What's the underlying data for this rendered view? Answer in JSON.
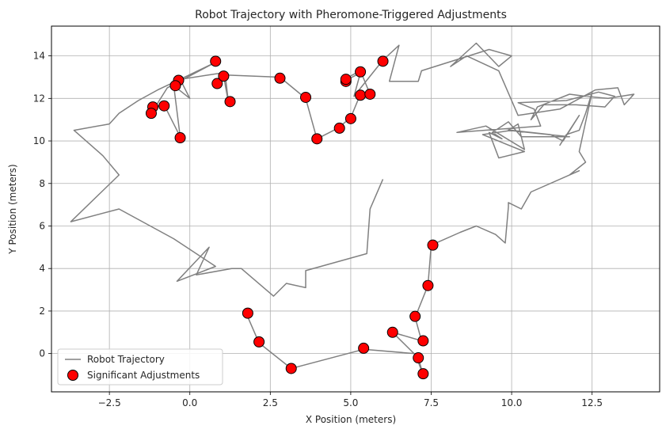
{
  "chart_data": {
    "type": "scatter",
    "title": "Robot Trajectory with Pheromone-Triggered Adjustments",
    "xlabel": "X Position (meters)",
    "ylabel": "Y Position (meters)",
    "xlim": [
      -4.3,
      14.6
    ],
    "ylim": [
      -1.8,
      15.4
    ],
    "xticks": [
      -2.5,
      0.0,
      2.5,
      5.0,
      7.5,
      10.0,
      12.5
    ],
    "xtick_labels": [
      "−2.5",
      "0.0",
      "2.5",
      "5.0",
      "7.5",
      "10.0",
      "12.5"
    ],
    "yticks": [
      0,
      2,
      4,
      6,
      8,
      10,
      12,
      14
    ],
    "ytick_labels": [
      "0",
      "2",
      "4",
      "6",
      "8",
      "10",
      "12",
      "14"
    ],
    "grid": true,
    "legend_position": "lower-left",
    "series": [
      {
        "name": "Robot Trajectory",
        "kind": "line",
        "color": "#808080",
        "points": [
          [
            6.0,
            8.2
          ],
          [
            5.6,
            6.8
          ],
          [
            5.5,
            4.7
          ],
          [
            3.6,
            3.9
          ],
          [
            3.6,
            3.1
          ],
          [
            3.0,
            3.3
          ],
          [
            2.6,
            2.7
          ],
          [
            1.6,
            4.0
          ],
          [
            1.3,
            4.0
          ],
          [
            0.2,
            3.7
          ],
          [
            0.6,
            5.0
          ],
          [
            -0.4,
            3.4
          ],
          [
            0.8,
            4.1
          ],
          [
            -0.5,
            5.4
          ],
          [
            -2.2,
            6.8
          ],
          [
            -3.7,
            6.2
          ],
          [
            -2.2,
            8.4
          ],
          [
            -2.7,
            9.3
          ],
          [
            -3.6,
            10.5
          ],
          [
            -2.5,
            10.8
          ],
          [
            -2.2,
            11.3
          ],
          [
            -1.6,
            11.9
          ],
          [
            -1.0,
            12.4
          ],
          [
            -0.3,
            12.9
          ],
          [
            0.8,
            13.7
          ],
          [
            -0.7,
            12.5
          ],
          [
            -1.2,
            11.3
          ],
          [
            -1.1,
            11.6
          ],
          [
            -0.8,
            11.7
          ],
          [
            -0.3,
            10.2
          ],
          [
            -0.5,
            12.6
          ],
          [
            0.0,
            12.0
          ],
          [
            -0.3,
            12.9
          ],
          [
            1.0,
            13.2
          ],
          [
            0.8,
            12.7
          ],
          [
            1.05,
            13.05
          ],
          [
            1.2,
            11.8
          ],
          [
            1.1,
            13.1
          ],
          [
            2.8,
            13.0
          ],
          [
            3.6,
            12.0
          ],
          [
            3.95,
            10.1
          ],
          [
            4.6,
            10.6
          ],
          [
            5.0,
            11.1
          ],
          [
            5.3,
            12.2
          ],
          [
            5.6,
            12.2
          ],
          [
            5.3,
            13.3
          ],
          [
            4.8,
            12.9
          ],
          [
            4.85,
            12.85
          ],
          [
            5.3,
            13.2
          ],
          [
            5.1,
            12.1
          ],
          [
            6.0,
            13.8
          ],
          [
            6.5,
            14.5
          ],
          [
            6.2,
            12.8
          ],
          [
            7.1,
            12.8
          ],
          [
            7.2,
            13.3
          ],
          [
            9.3,
            14.3
          ],
          [
            10.0,
            14.0
          ],
          [
            9.6,
            13.5
          ],
          [
            8.9,
            14.6
          ],
          [
            8.1,
            13.5
          ],
          [
            8.6,
            14.0
          ],
          [
            9.6,
            13.3
          ],
          [
            10.2,
            11.2
          ],
          [
            11.5,
            11.5
          ],
          [
            12.6,
            12.4
          ],
          [
            13.3,
            12.5
          ],
          [
            13.5,
            11.7
          ],
          [
            13.8,
            12.2
          ],
          [
            13.0,
            12.0
          ],
          [
            12.3,
            12.1
          ],
          [
            11.8,
            12.2
          ],
          [
            10.8,
            11.6
          ],
          [
            10.6,
            11.0
          ],
          [
            11.0,
            11.7
          ],
          [
            12.0,
            11.7
          ],
          [
            12.9,
            11.6
          ],
          [
            13.2,
            12.1
          ],
          [
            12.7,
            12.3
          ],
          [
            11.7,
            11.9
          ],
          [
            10.2,
            11.8
          ],
          [
            10.7,
            11.5
          ],
          [
            10.9,
            10.7
          ],
          [
            8.3,
            10.4
          ],
          [
            9.2,
            10.7
          ],
          [
            10.4,
            9.6
          ],
          [
            10.2,
            10.8
          ],
          [
            9.9,
            10.5
          ],
          [
            11.8,
            10.2
          ],
          [
            10.3,
            10.2
          ],
          [
            9.9,
            10.9
          ],
          [
            9.4,
            10.4
          ],
          [
            9.7,
            10.1
          ],
          [
            9.3,
            10.4
          ],
          [
            9.6,
            9.2
          ],
          [
            10.4,
            9.5
          ],
          [
            9.1,
            10.3
          ],
          [
            10.0,
            10.5
          ],
          [
            11.2,
            10.3
          ],
          [
            11.6,
            10.0
          ],
          [
            12.1,
            11.2
          ],
          [
            11.5,
            9.8
          ],
          [
            11.7,
            10.3
          ],
          [
            12.1,
            10.5
          ],
          [
            12.3,
            11.3
          ],
          [
            12.5,
            12.3
          ],
          [
            12.1,
            9.5
          ],
          [
            12.3,
            9.0
          ],
          [
            11.8,
            8.4
          ],
          [
            12.1,
            8.6
          ],
          [
            10.6,
            7.6
          ],
          [
            10.3,
            6.8
          ],
          [
            9.9,
            7.1
          ],
          [
            9.9,
            6.9
          ],
          [
            9.8,
            5.2
          ],
          [
            9.5,
            5.6
          ],
          [
            8.9,
            6.0
          ],
          [
            8.4,
            5.7
          ],
          [
            7.5,
            5.1
          ],
          [
            7.4,
            3.2
          ],
          [
            7.0,
            1.7
          ],
          [
            7.2,
            0.6
          ],
          [
            6.3,
            1.0
          ],
          [
            7.1,
            -0.2
          ],
          [
            7.25,
            -1.0
          ],
          [
            7.0,
            0.0
          ],
          [
            5.4,
            0.2
          ],
          [
            3.15,
            -0.7
          ],
          [
            2.15,
            0.5
          ],
          [
            1.75,
            1.9
          ]
        ]
      },
      {
        "name": "Significant Adjustments",
        "kind": "scatter",
        "color": "#ff0000",
        "edge_color": "#000000",
        "points": [
          [
            0.8,
            13.75
          ],
          [
            -0.35,
            12.85
          ],
          [
            -0.45,
            12.6
          ],
          [
            -0.8,
            11.65
          ],
          [
            -1.15,
            11.6
          ],
          [
            -1.2,
            11.3
          ],
          [
            -0.3,
            10.15
          ],
          [
            0.85,
            12.7
          ],
          [
            1.05,
            13.05
          ],
          [
            1.25,
            11.85
          ],
          [
            2.8,
            12.95
          ],
          [
            3.6,
            12.05
          ],
          [
            3.95,
            10.1
          ],
          [
            4.65,
            10.6
          ],
          [
            5.0,
            11.05
          ],
          [
            4.85,
            12.8
          ],
          [
            4.85,
            12.9
          ],
          [
            5.3,
            12.15
          ],
          [
            5.6,
            12.2
          ],
          [
            5.3,
            13.25
          ],
          [
            6.0,
            13.75
          ],
          [
            7.55,
            5.1
          ],
          [
            7.4,
            3.2
          ],
          [
            7.0,
            1.75
          ],
          [
            7.25,
            0.6
          ],
          [
            6.3,
            1.0
          ],
          [
            7.1,
            -0.2
          ],
          [
            7.25,
            -0.95
          ],
          [
            5.4,
            0.25
          ],
          [
            3.15,
            -0.7
          ],
          [
            2.15,
            0.55
          ],
          [
            1.8,
            1.9
          ]
        ]
      }
    ]
  }
}
